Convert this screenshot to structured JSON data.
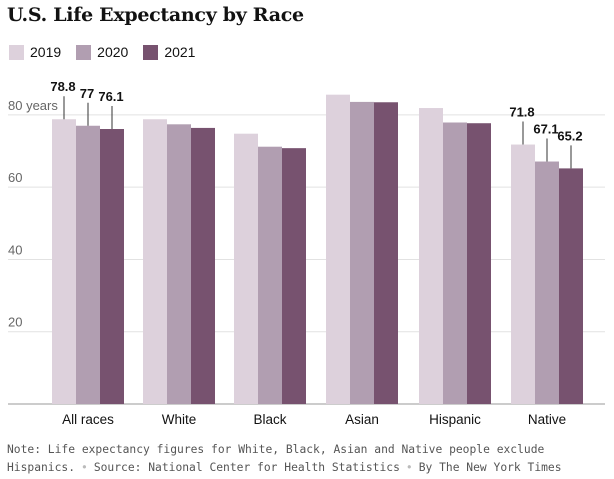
{
  "title": "U.S. Life Expectancy by Race",
  "colors": {
    "2019": "#ddd1dc",
    "2020": "#b19eb1",
    "2021": "#77526f"
  },
  "chart_data": {
    "type": "bar",
    "title": "U.S. Life Expectancy by Race",
    "categories": [
      "All races",
      "White",
      "Black",
      "Asian",
      "Hispanic",
      "Native"
    ],
    "series": [
      {
        "name": "2019",
        "values": [
          78.8,
          78.8,
          74.8,
          85.6,
          81.9,
          71.8
        ]
      },
      {
        "name": "2020",
        "values": [
          77.0,
          77.4,
          71.2,
          83.6,
          77.9,
          67.1
        ]
      },
      {
        "name": "2021",
        "values": [
          76.1,
          76.4,
          70.8,
          83.5,
          77.7,
          65.2
        ]
      }
    ],
    "data_labels": [
      {
        "category": "All races",
        "values": [
          "78.8",
          "77",
          "76.1"
        ]
      },
      {
        "category": "Native",
        "values": [
          "71.8",
          "67.1",
          "65.2"
        ]
      }
    ],
    "y_ticks": [
      {
        "value": 20,
        "label": "20"
      },
      {
        "value": 40,
        "label": "40"
      },
      {
        "value": 60,
        "label": "60"
      },
      {
        "value": 80,
        "label": "80 years"
      }
    ],
    "ylim": [
      0,
      88
    ],
    "xlabel": "",
    "ylabel": "",
    "grid": true,
    "legend": "top-left"
  },
  "footer": {
    "note": "Note: Life expectancy figures for White, Black, Asian and Native people exclude Hispanics.",
    "source": "Source: National Center for Health Statistics",
    "credit": "By The New York Times"
  }
}
